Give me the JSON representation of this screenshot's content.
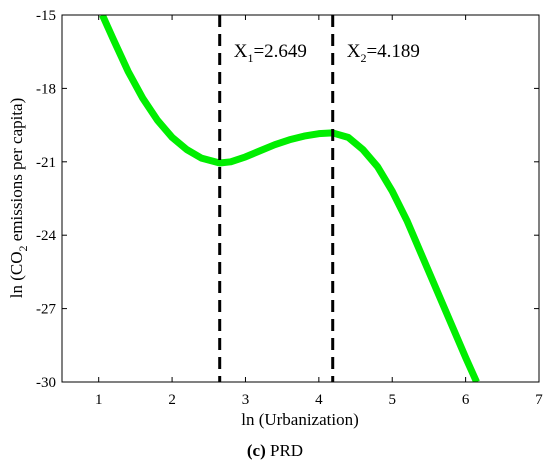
{
  "chart_data": {
    "type": "line",
    "title": "",
    "xlabel": "ln (Urbanization)",
    "ylabel_parts": {
      "before": "ln (CO",
      "subscript": "2",
      "after": " emissions per capita)"
    },
    "xlim": [
      0.5,
      7
    ],
    "ylim": [
      -30,
      -15
    ],
    "xticks": [
      1,
      2,
      3,
      4,
      5,
      6,
      7
    ],
    "yticks": [
      -15,
      -18,
      -21,
      -24,
      -27,
      -30
    ],
    "grid": false,
    "series": [
      {
        "color": "#00ee00",
        "x": [
          1.05,
          1.2,
          1.4,
          1.6,
          1.8,
          2.0,
          2.2,
          2.4,
          2.649,
          2.8,
          3.0,
          3.2,
          3.4,
          3.6,
          3.8,
          4.0,
          4.189,
          4.4,
          4.6,
          4.8,
          5.0,
          5.2,
          5.4,
          5.6,
          5.8,
          6.0,
          6.15
        ],
        "y": [
          -15.0,
          -16.0,
          -17.3,
          -18.4,
          -19.3,
          -20.0,
          -20.5,
          -20.85,
          -21.05,
          -21.0,
          -20.8,
          -20.55,
          -20.3,
          -20.1,
          -19.95,
          -19.85,
          -19.82,
          -20.0,
          -20.5,
          -21.2,
          -22.2,
          -23.4,
          -24.8,
          -26.2,
          -27.6,
          -29.0,
          -30.0
        ]
      }
    ],
    "vlines": [
      {
        "x": 2.649,
        "label_main": "X",
        "label_sub": "1",
        "label_value": "=2.649"
      },
      {
        "x": 4.189,
        "label_main": "X",
        "label_sub": "2",
        "label_value": "=4.189"
      }
    ],
    "vline_color": "#000000"
  },
  "caption": {
    "bold_part": "(c)",
    "rest": " PRD"
  }
}
